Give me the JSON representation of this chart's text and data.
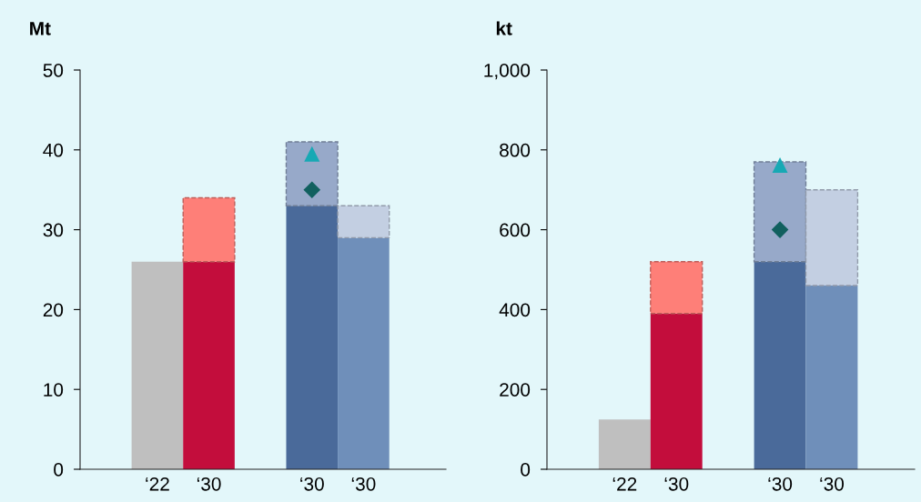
{
  "chart_data": [
    {
      "type": "bar",
      "stacked": true,
      "ylabel": "Mt",
      "categories": [
        "‘22",
        "‘30",
        null,
        "‘30",
        "‘30"
      ],
      "ylim": [
        0,
        50
      ],
      "yticks": [
        0,
        10,
        20,
        30,
        40,
        50
      ],
      "grid": false,
      "legend": false,
      "series": [
        {
          "values": [
            26,
            26,
            null,
            33,
            29
          ],
          "colors": [
            "#bfbfbf",
            "#c30d3c",
            null,
            "#4a6a9a",
            "#6f8fba"
          ]
        },
        {
          "values": [
            null,
            8,
            null,
            8,
            4
          ],
          "colors": [
            null,
            "#fe7f78",
            null,
            "#97a9c9",
            "#c3cfe2"
          ],
          "line_style": "dashed"
        },
        {
          "type": "scatter",
          "marker": "triangle",
          "color": "#17a9b4",
          "values": [
            null,
            null,
            null,
            39.5,
            null
          ]
        },
        {
          "type": "scatter",
          "marker": "diamond",
          "color": "#11605f",
          "values": [
            null,
            null,
            null,
            35,
            null
          ]
        }
      ]
    },
    {
      "type": "bar",
      "stacked": true,
      "ylabel": "kt",
      "categories": [
        "‘22",
        "‘30",
        null,
        "‘30",
        "‘30"
      ],
      "ylim": [
        0,
        1000
      ],
      "yticks": [
        0,
        200,
        400,
        600,
        800,
        {
          "value": 1000,
          "label": "1,000"
        }
      ],
      "grid": false,
      "legend": false,
      "series": [
        {
          "values": [
            125,
            390,
            null,
            520,
            460
          ],
          "colors": [
            "#bfbfbf",
            "#c30d3c",
            null,
            "#4a6a9a",
            "#6f8fba"
          ]
        },
        {
          "values": [
            null,
            130,
            null,
            250,
            240
          ],
          "colors": [
            null,
            "#fe7f78",
            null,
            "#97a9c9",
            "#c3cfe2"
          ],
          "line_style": "dashed"
        },
        {
          "type": "scatter",
          "marker": "triangle",
          "color": "#17a9b4",
          "values": [
            null,
            null,
            null,
            762,
            null
          ]
        },
        {
          "type": "scatter",
          "marker": "diamond",
          "color": "#11605f",
          "values": [
            null,
            null,
            null,
            600,
            null
          ]
        }
      ]
    }
  ]
}
